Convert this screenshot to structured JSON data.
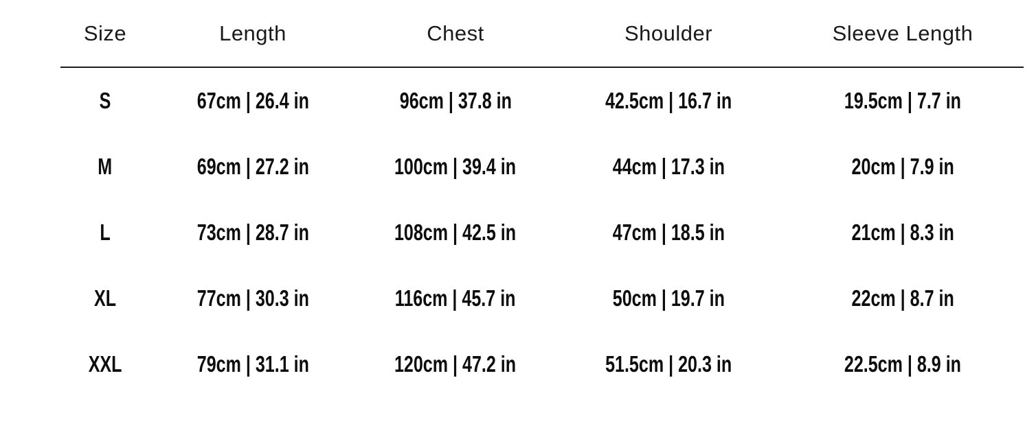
{
  "colors": {
    "background": "#ffffff",
    "header_text": "#1a1a1a",
    "value_text": "#0d0d0d",
    "divider_line": "#1c1c1c"
  },
  "chart_data": {
    "type": "table",
    "columns": [
      "Size",
      "Length",
      "Chest",
      "Shoulder",
      "Sleeve Length"
    ],
    "rows": [
      [
        "S",
        "67cm | 26.4 in",
        "96cm | 37.8 in",
        "42.5cm | 16.7 in",
        "19.5cm | 7.7 in"
      ],
      [
        "M",
        "69cm | 27.2 in",
        "100cm | 39.4 in",
        "44cm | 17.3 in",
        "20cm | 7.9 in"
      ],
      [
        "L",
        "73cm | 28.7 in",
        "108cm | 42.5 in",
        "47cm | 18.5 in",
        "21cm | 8.3 in"
      ],
      [
        "XL",
        "77cm | 30.3 in",
        "116cm | 45.7 in",
        "50cm | 19.7 in",
        "22cm | 8.7 in"
      ],
      [
        "XXL",
        "79cm | 31.1 in",
        "120cm | 47.2 in",
        "51.5cm | 20.3 in",
        "22.5cm | 8.9 in"
      ]
    ]
  }
}
